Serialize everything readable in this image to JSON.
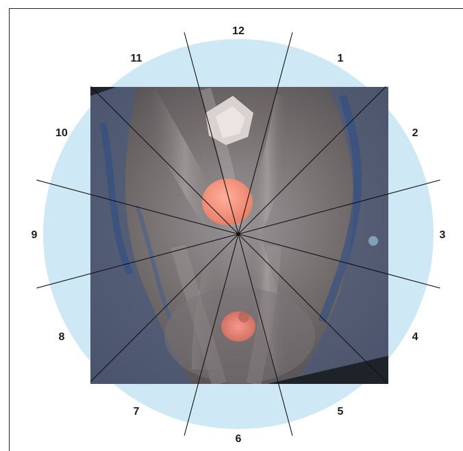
{
  "figure": {
    "clock_labels": [
      "12",
      "1",
      "2",
      "3",
      "4",
      "5",
      "6",
      "7",
      "8",
      "9",
      "10",
      "11"
    ],
    "colors": {
      "circle_fill": "#cfe8f6",
      "tissue_base": "#5d5a5c",
      "tissue_light": "#8c8888",
      "tissue_blue": "#2e4f86",
      "lesion_pink": "#f28e77",
      "spoke_line": "#111111"
    },
    "image": "endoscopic view with two pink lesions, overlaid with 12-position clock-face grid"
  }
}
